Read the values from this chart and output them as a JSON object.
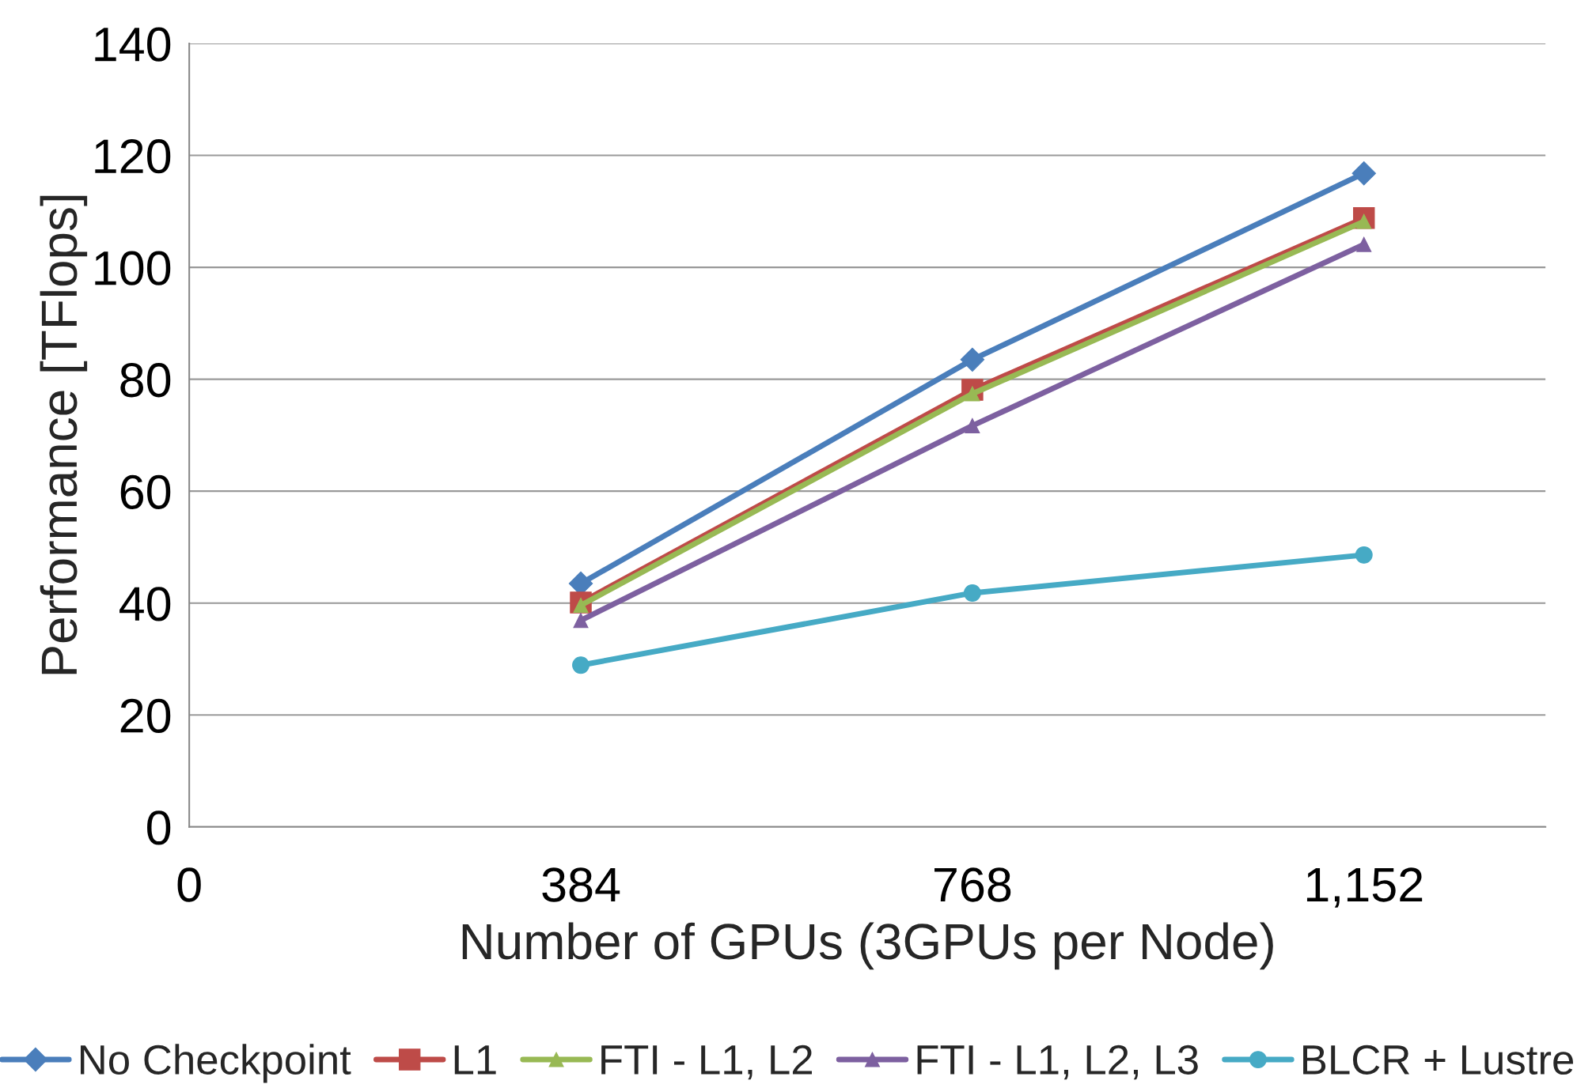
{
  "chart_data": {
    "type": "line",
    "xlabel": "Number of GPUs (3GPUs per Node)",
    "ylabel": "Performance [TFlops]",
    "x": [
      384,
      768,
      1152
    ],
    "xlim": [
      0,
      1330
    ],
    "xticks": [
      0,
      384,
      768,
      {
        "value": 1152,
        "label": "1,152"
      }
    ],
    "ylim": [
      0,
      140
    ],
    "yticks": [
      0,
      20,
      40,
      60,
      80,
      100,
      120,
      140
    ],
    "grid": "y",
    "legend": "bottom",
    "series": [
      {
        "name": "No Checkpoint",
        "color": "#4a7ebb",
        "marker": "diamond",
        "values": [
          43.5,
          83.5,
          116.8
        ]
      },
      {
        "name": "L1",
        "color": "#be4b48",
        "marker": "square",
        "values": [
          40.1,
          78.1,
          108.8
        ]
      },
      {
        "name": "FTI - L1, L2",
        "color": "#98b954",
        "marker": "triangle",
        "values": [
          39.6,
          77.4,
          108.2
        ]
      },
      {
        "name": "FTI - L1, L2, L3",
        "color": "#7d60a0",
        "marker": "triangle",
        "values": [
          36.9,
          71.7,
          104.1
        ]
      },
      {
        "name": "BLCR + Lustre",
        "color": "#46aac5",
        "marker": "circle",
        "values": [
          28.9,
          41.8,
          48.6
        ]
      }
    ]
  }
}
